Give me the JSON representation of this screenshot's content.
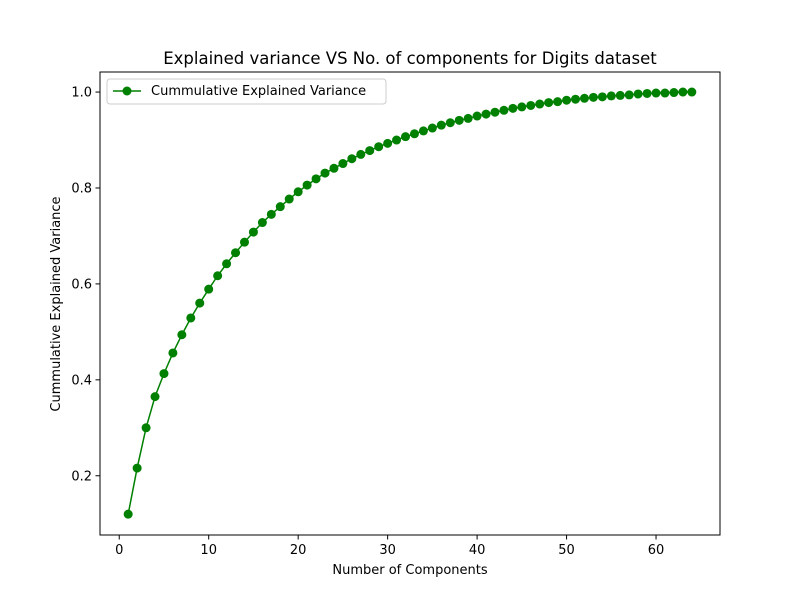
{
  "chart_data": {
    "type": "line",
    "title": "Explained variance VS No. of components for Digits dataset",
    "xlabel": "Number of Components",
    "ylabel": "Cummulative Explained Variance",
    "xlim": [
      -2.15,
      67.15
    ],
    "ylim": [
      0.0765,
      1.0418
    ],
    "xticks": [
      0,
      10,
      20,
      30,
      40,
      50,
      60
    ],
    "yticks": [
      0.2,
      0.4,
      0.6,
      0.8,
      1.0
    ],
    "xtick_labels": [
      "0",
      "10",
      "20",
      "30",
      "40",
      "50",
      "60"
    ],
    "ytick_labels": [
      "0.2",
      "0.4",
      "0.6",
      "0.8",
      "1.0"
    ],
    "grid": false,
    "legend_position": "upper-left",
    "series": [
      {
        "name": "Cummulative Explained Variance",
        "color": "#008000",
        "marker": "circle",
        "x": [
          1,
          2,
          3,
          4,
          5,
          6,
          7,
          8,
          9,
          10,
          11,
          12,
          13,
          14,
          15,
          16,
          17,
          18,
          19,
          20,
          21,
          22,
          23,
          24,
          25,
          26,
          27,
          28,
          29,
          30,
          31,
          32,
          33,
          34,
          35,
          36,
          37,
          38,
          39,
          40,
          41,
          42,
          43,
          44,
          45,
          46,
          47,
          48,
          49,
          50,
          51,
          52,
          53,
          54,
          55,
          56,
          57,
          58,
          59,
          60,
          61,
          62,
          63,
          64
        ],
        "values": [
          0.12,
          0.216,
          0.3,
          0.365,
          0.413,
          0.456,
          0.494,
          0.529,
          0.56,
          0.589,
          0.617,
          0.642,
          0.665,
          0.687,
          0.708,
          0.728,
          0.745,
          0.761,
          0.777,
          0.792,
          0.806,
          0.819,
          0.831,
          0.841,
          0.851,
          0.861,
          0.87,
          0.878,
          0.886,
          0.893,
          0.9,
          0.907,
          0.913,
          0.919,
          0.925,
          0.931,
          0.936,
          0.941,
          0.945,
          0.95,
          0.954,
          0.958,
          0.962,
          0.966,
          0.969,
          0.972,
          0.975,
          0.978,
          0.98,
          0.983,
          0.985,
          0.987,
          0.989,
          0.99,
          0.992,
          0.993,
          0.994,
          0.996,
          0.997,
          0.998,
          0.998,
          0.999,
          1.0,
          1.0
        ]
      }
    ]
  }
}
